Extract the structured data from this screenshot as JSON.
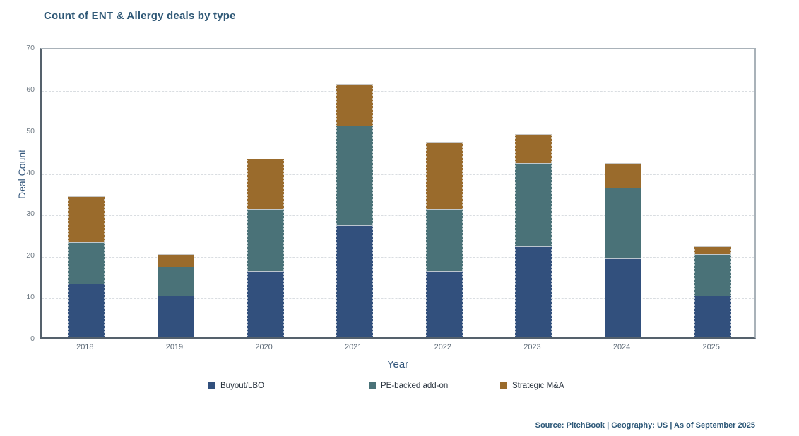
{
  "chart": {
    "title": "Count of ENT & Allergy deals by type",
    "xlabel": "Year",
    "ylabel": "Deal Count",
    "source": "Source: PitchBook | Geography: US | As of September 2025"
  },
  "chart_data": {
    "type": "bar",
    "stacked": true,
    "title": "Count of ENT & Allergy deals by type",
    "xlabel": "Year",
    "ylabel": "Deal Count",
    "categories": [
      "2018",
      "2019",
      "2020",
      "2021",
      "2022",
      "2023",
      "2024",
      "2025"
    ],
    "series": [
      {
        "name": "Buyout/LBO",
        "color": "#32507d",
        "values": [
          13,
          10,
          16,
          27,
          16,
          22,
          19,
          10
        ]
      },
      {
        "name": "PE-backed add-on",
        "color": "#4a7278",
        "values": [
          10,
          7,
          15,
          24,
          15,
          20,
          17,
          10
        ]
      },
      {
        "name": "Strategic M&A",
        "color": "#9a6b2c",
        "values": [
          11,
          3,
          12,
          10,
          16,
          7,
          6,
          2
        ]
      }
    ],
    "totals": [
      34,
      20,
      43,
      61,
      47,
      49,
      42,
      22
    ],
    "ylim": [
      0,
      70
    ],
    "yticks": [
      0,
      10,
      20,
      30,
      40,
      50,
      60,
      70
    ],
    "grid": true,
    "legend_position": "bottom",
    "colors": {
      "title_text": "#2f5876",
      "axis_title_text": "#33567b",
      "tick_text": "#5d6a77",
      "source_text": "#2d5878"
    }
  }
}
